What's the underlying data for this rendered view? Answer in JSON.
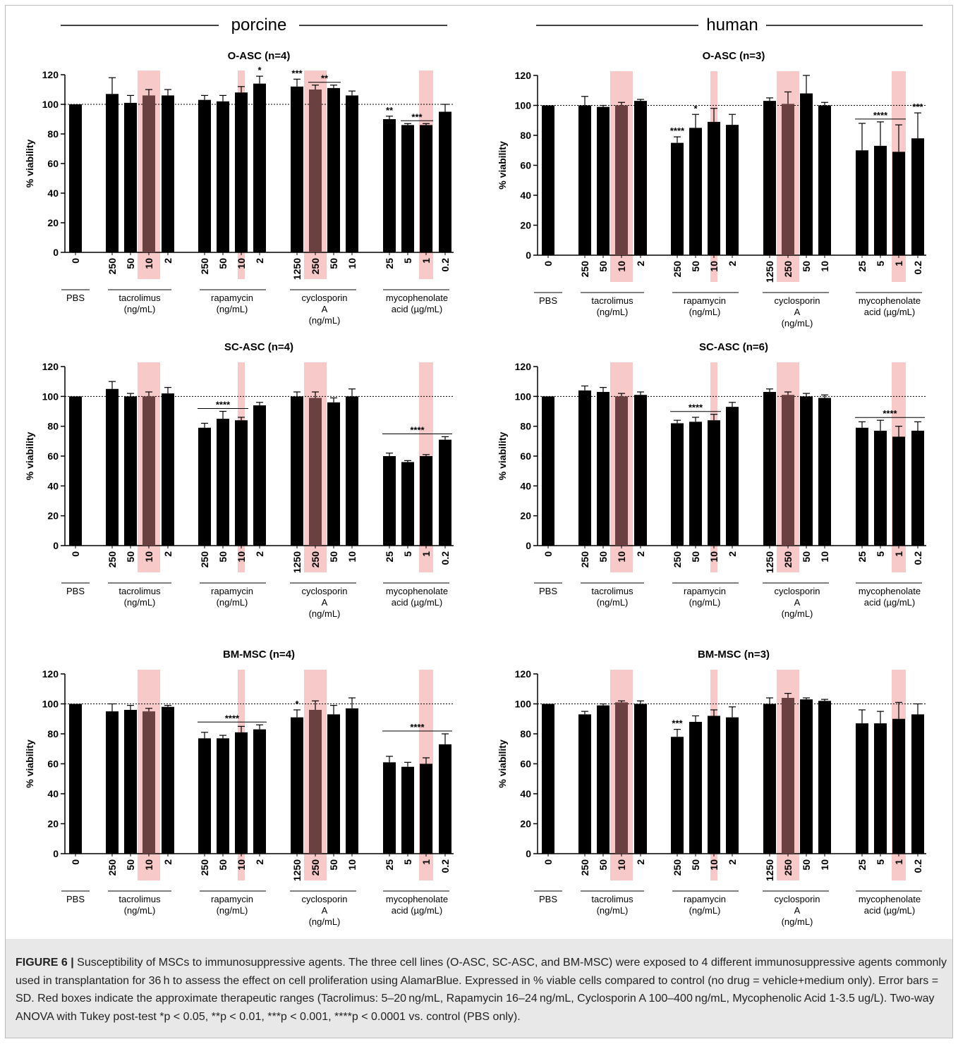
{
  "headers": {
    "left": "porcine",
    "right": "human"
  },
  "ylabel": "% viability",
  "yticks": [
    "0",
    "20",
    "40",
    "60",
    "80",
    "100",
    "120"
  ],
  "x_tick_labels": [
    "0",
    "250",
    "50",
    "10",
    "2",
    "250",
    "50",
    "10",
    "2",
    "1250",
    "250",
    "50",
    "10",
    "25",
    "5",
    "1",
    "0.2"
  ],
  "group_labels": [
    [
      "PBS"
    ],
    [
      "tacrolimus",
      "(ng/mL)"
    ],
    [
      "rapamycin",
      "(ng/mL)"
    ],
    [
      "cyclosporin",
      "A",
      "(ng/mL)"
    ],
    [
      "mycophenolate",
      "acid (µg/mL)"
    ]
  ],
  "colors": {
    "bar": "#000000",
    "bar_in_range": "#6b4040",
    "range_box": "#f7c9c9"
  },
  "chart_data": [
    {
      "type": "bar",
      "title": "O-ASC (n=4)",
      "ylim": [
        0,
        120
      ],
      "reference_line": 100,
      "categories": [
        "0",
        "250",
        "50",
        "10",
        "2",
        "250",
        "50",
        "10",
        "2",
        "1250",
        "250",
        "50",
        "10",
        "25",
        "5",
        "1",
        "0.2"
      ],
      "values": [
        100,
        107,
        101,
        106,
        106,
        103,
        102,
        108,
        114,
        112,
        110,
        111,
        106,
        90,
        86,
        86,
        95
      ],
      "errors": [
        0,
        11,
        5,
        4,
        4,
        3,
        4,
        4,
        5,
        5,
        3,
        2,
        3,
        2,
        1,
        1,
        5
      ],
      "therapeutic_range_bars": [
        3,
        7,
        10,
        15
      ],
      "annotations": [
        {
          "text": "*",
          "bar": 8
        },
        {
          "text": "***",
          "bar": 9
        },
        {
          "text": "**",
          "from": 10,
          "to": 11
        },
        {
          "text": "**",
          "bar": 13
        },
        {
          "text": "***",
          "from": 14,
          "to": 15
        }
      ]
    },
    {
      "type": "bar",
      "title": "O-ASC  (n=3)",
      "ylim": [
        0,
        120
      ],
      "reference_line": 100,
      "categories": [
        "0",
        "250",
        "50",
        "10",
        "2",
        "250",
        "50",
        "10",
        "2",
        "1250",
        "250",
        "50",
        "10",
        "25",
        "5",
        "1",
        "0.2"
      ],
      "values": [
        100,
        100,
        99,
        100,
        103,
        75,
        85,
        89,
        87,
        103,
        101,
        108,
        100,
        70,
        73,
        69,
        78
      ],
      "errors": [
        0,
        6,
        1,
        2,
        1,
        4,
        9,
        9,
        7,
        2,
        8,
        12,
        2,
        18,
        16,
        18,
        17
      ],
      "therapeutic_range_bars": [
        3,
        7,
        10,
        15
      ],
      "annotations": [
        {
          "text": "****",
          "bar": 5
        },
        {
          "text": "*",
          "bar": 6
        },
        {
          "text": "****",
          "from": 13,
          "to": 15
        },
        {
          "text": "***",
          "bar": 16
        }
      ]
    },
    {
      "type": "bar",
      "title": "SC-ASC (n=4)",
      "ylim": [
        0,
        120
      ],
      "reference_line": 100,
      "categories": [
        "0",
        "250",
        "50",
        "10",
        "2",
        "250",
        "50",
        "10",
        "2",
        "1250",
        "250",
        "50",
        "10",
        "25",
        "5",
        "1",
        "0.2"
      ],
      "values": [
        100,
        105,
        100,
        100,
        102,
        79,
        85,
        84,
        94,
        100,
        99,
        96,
        100,
        60,
        56,
        60,
        71
      ],
      "errors": [
        0,
        5,
        2,
        3,
        4,
        3,
        5,
        2,
        2,
        3,
        4,
        3,
        5,
        2,
        1,
        1,
        2
      ],
      "therapeutic_range_bars": [
        3,
        7,
        10,
        15
      ],
      "annotations": [
        {
          "text": "****",
          "from": 5,
          "to": 7
        },
        {
          "text": "****",
          "from": 13,
          "to": 16
        }
      ]
    },
    {
      "type": "bar",
      "title": "SC-ASC (n=6)",
      "ylim": [
        0,
        120
      ],
      "reference_line": 100,
      "categories": [
        "0",
        "250",
        "50",
        "10",
        "2",
        "250",
        "50",
        "10",
        "2",
        "1250",
        "250",
        "50",
        "10",
        "25",
        "5",
        "1",
        "0.2"
      ],
      "values": [
        100,
        104,
        103,
        100,
        101,
        82,
        83,
        84,
        93,
        103,
        101,
        100,
        99,
        79,
        77,
        73,
        77
      ],
      "errors": [
        0,
        3,
        3,
        2,
        2,
        2,
        3,
        4,
        3,
        2,
        2,
        2,
        2,
        4,
        7,
        7,
        6
      ],
      "therapeutic_range_bars": [
        3,
        7,
        10,
        15
      ],
      "annotations": [
        {
          "text": "****",
          "from": 5,
          "to": 7
        },
        {
          "text": "****",
          "from": 13,
          "to": 16
        }
      ]
    },
    {
      "type": "bar",
      "title": "BM-MSC  (n=4)",
      "ylim": [
        0,
        120
      ],
      "reference_line": 100,
      "categories": [
        "0",
        "250",
        "50",
        "10",
        "2",
        "250",
        "50",
        "10",
        "2",
        "1250",
        "250",
        "50",
        "10",
        "25",
        "5",
        "1",
        "0.2"
      ],
      "values": [
        100,
        95,
        96,
        95,
        98,
        77,
        77,
        81,
        83,
        91,
        96,
        93,
        97,
        61,
        58,
        60,
        73
      ],
      "errors": [
        0,
        5,
        3,
        2,
        1,
        4,
        2,
        4,
        3,
        5,
        6,
        6,
        7,
        4,
        3,
        4,
        7
      ],
      "therapeutic_range_bars": [
        3,
        7,
        10,
        15
      ],
      "annotations": [
        {
          "text": "****",
          "from": 5,
          "to": 8
        },
        {
          "text": "*",
          "bar": 9
        },
        {
          "text": "****",
          "from": 13,
          "to": 16
        }
      ]
    },
    {
      "type": "bar",
      "title": "BM-MSC  (n=3)",
      "ylim": [
        0,
        120
      ],
      "reference_line": 100,
      "categories": [
        "0",
        "250",
        "50",
        "10",
        "2",
        "250",
        "50",
        "10",
        "2",
        "1250",
        "250",
        "50",
        "10",
        "25",
        "5",
        "1",
        "0.2"
      ],
      "values": [
        100,
        93,
        99,
        101,
        100,
        78,
        88,
        92,
        91,
        100,
        104,
        103,
        102,
        87,
        87,
        90,
        93
      ],
      "errors": [
        0,
        2,
        1,
        1,
        2,
        5,
        4,
        4,
        7,
        4,
        3,
        1,
        1,
        9,
        8,
        11,
        7
      ],
      "therapeutic_range_bars": [
        3,
        7,
        10,
        15
      ],
      "annotations": [
        {
          "text": "***",
          "bar": 5
        }
      ]
    }
  ],
  "caption": {
    "label": "FIGURE 6 |",
    "text": "Susceptibility of MSCs to immunosuppressive agents. The three cell lines (O-ASC, SC-ASC, and BM-MSC) were exposed to 4 different immunosuppressive agents commonly used in transplantation for 36 h to assess the effect on cell proliferation using AlamarBlue. Expressed in % viable cells compared to control (no drug = vehicle+medium only). Error bars = SD. Red boxes indicate the approximate therapeutic ranges (Tacrolimus: 5–20 ng/mL, Rapamycin 16–24 ng/mL, Cyclosporin A 100–400 ng/mL, Mycophenolic Acid 1-3.5 ug/L). Two-way ANOVA with Tukey post-test *p < 0.05, **p < 0.01, ***p < 0.001, ****p < 0.0001 vs. control (PBS only)."
  }
}
